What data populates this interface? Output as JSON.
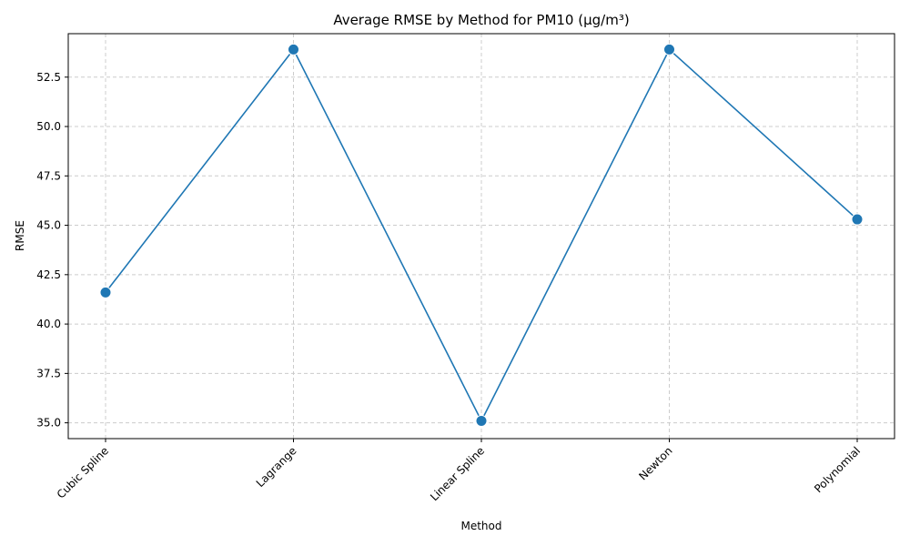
{
  "chart_data": {
    "type": "line",
    "title": "Average RMSE by Method for PM10 (µg/m³)",
    "xlabel": "Method",
    "ylabel": "RMSE",
    "categories": [
      "Cubic Spline",
      "Lagrange",
      "Linear Spline",
      "Newton",
      "Polynomial"
    ],
    "series": [
      {
        "values": [
          41.6,
          53.9,
          35.1,
          53.9,
          45.3
        ]
      }
    ],
    "ylim": [
      34.2,
      54.7
    ],
    "yticks": [
      35.0,
      37.5,
      40.0,
      42.5,
      45.0,
      47.5,
      50.0,
      52.5
    ],
    "ytick_labels": [
      "35.0",
      "37.5",
      "40.0",
      "42.5",
      "45.0",
      "47.5",
      "50.0",
      "52.5"
    ],
    "grid": true,
    "color": "#1f77b4"
  }
}
